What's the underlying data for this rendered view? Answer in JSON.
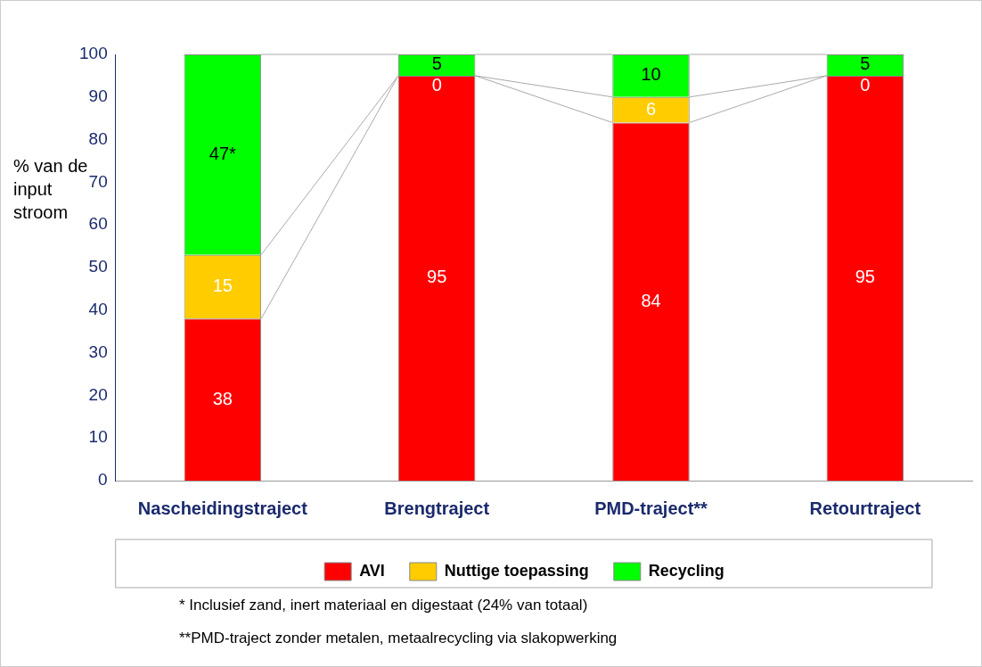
{
  "chart_data": {
    "type": "bar",
    "stacked": true,
    "ylabel": "% van de input stroom",
    "categories": [
      "Nascheidingstraject",
      "Brengtraject",
      "PMD-traject**",
      "Retourtraject"
    ],
    "series": [
      {
        "name": "AVI",
        "color": "#ff0000",
        "values": [
          38,
          95,
          84,
          95
        ],
        "value_labels": [
          "38",
          "95",
          "84",
          "95"
        ]
      },
      {
        "name": "Nuttige toepassing",
        "color": "#ffcc00",
        "values": [
          15,
          0,
          6,
          0
        ],
        "value_labels": [
          "15",
          "0",
          "6",
          "0"
        ]
      },
      {
        "name": "Recycling",
        "color": "#00ff00",
        "values": [
          47,
          5,
          10,
          5
        ],
        "value_labels": [
          "47*",
          "5",
          "10",
          "5"
        ]
      }
    ],
    "ylim": [
      0,
      100
    ],
    "yticks": [
      0,
      10,
      20,
      30,
      40,
      50,
      60,
      70,
      80,
      90,
      100
    ],
    "grid": false,
    "legend": "bottom",
    "annotations": [
      "* Inclusief zand, inert materiaal en digestaat (24% van totaal)",
      "**PMD-traject zonder metalen, metaalrecycling via slakopwerking"
    ]
  }
}
